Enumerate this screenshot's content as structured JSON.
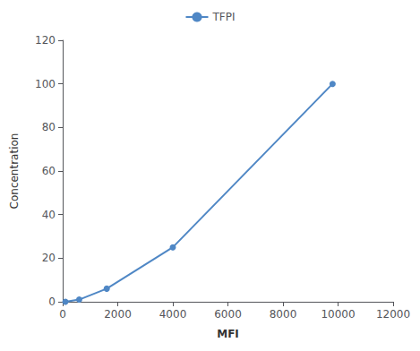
{
  "chart_data": {
    "type": "line",
    "x": [
      100,
      600,
      1600,
      4000,
      9800
    ],
    "series": [
      {
        "name": "TFPI",
        "color": "#4f87c5",
        "values": [
          0,
          1,
          6,
          25,
          100
        ],
        "marker": "circle"
      }
    ],
    "xlabel": "MFI",
    "ylabel": "Concentration",
    "xlim": [
      0,
      12000
    ],
    "ylim": [
      0,
      120
    ],
    "xticks": [
      0,
      2000,
      4000,
      6000,
      8000,
      10000,
      12000
    ],
    "yticks": [
      0,
      20,
      40,
      60,
      80,
      100,
      120
    ],
    "grid": false,
    "legend": "top"
  }
}
